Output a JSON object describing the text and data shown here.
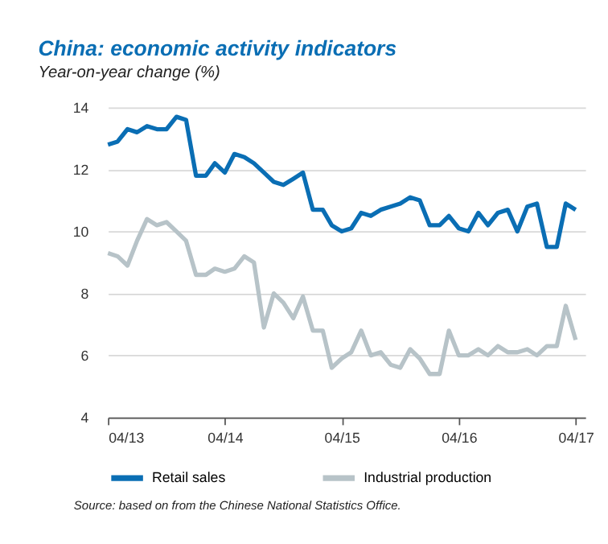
{
  "chart_data": {
    "type": "line",
    "title": "China: economic activity indicators",
    "subtitle": "Year-on-year change (%)",
    "x": [
      "2013-04",
      "2013-05",
      "2013-06",
      "2013-07",
      "2013-08",
      "2013-09",
      "2013-10",
      "2013-11",
      "2013-12",
      "2014-01",
      "2014-02",
      "2014-03",
      "2014-04",
      "2014-05",
      "2014-06",
      "2014-07",
      "2014-08",
      "2014-09",
      "2014-10",
      "2014-11",
      "2014-12",
      "2015-01",
      "2015-02",
      "2015-03",
      "2015-04",
      "2015-05",
      "2015-06",
      "2015-07",
      "2015-08",
      "2015-09",
      "2015-10",
      "2015-11",
      "2015-12",
      "2016-01",
      "2016-02",
      "2016-03",
      "2016-04",
      "2016-05",
      "2016-06",
      "2016-07",
      "2016-08",
      "2016-09",
      "2016-10",
      "2016-11",
      "2016-12",
      "2017-01",
      "2017-02",
      "2017-03",
      "2017-04"
    ],
    "series": [
      {
        "name": "Retail sales",
        "color": "#0a6eb4",
        "values": [
          12.8,
          12.9,
          13.3,
          13.2,
          13.4,
          13.3,
          13.3,
          13.7,
          13.6,
          11.8,
          11.8,
          12.2,
          11.9,
          12.5,
          12.4,
          12.2,
          11.9,
          11.6,
          11.5,
          11.7,
          11.9,
          10.7,
          10.7,
          10.2,
          10.0,
          10.1,
          10.6,
          10.5,
          10.7,
          10.8,
          10.9,
          11.1,
          11.0,
          10.2,
          10.2,
          10.5,
          10.1,
          10.0,
          10.6,
          10.2,
          10.6,
          10.7,
          10.0,
          10.8,
          10.9,
          9.5,
          9.5,
          10.9,
          10.7
        ]
      },
      {
        "name": "Industrial production",
        "color": "#b7c3c8",
        "values": [
          9.3,
          9.2,
          8.9,
          9.7,
          10.4,
          10.2,
          10.3,
          10.0,
          9.7,
          8.6,
          8.6,
          8.8,
          8.7,
          8.8,
          9.2,
          9.0,
          6.9,
          8.0,
          7.7,
          7.2,
          7.9,
          6.8,
          6.8,
          5.6,
          5.9,
          6.1,
          6.8,
          6.0,
          6.1,
          5.7,
          5.6,
          6.2,
          5.9,
          5.4,
          5.4,
          6.8,
          6.0,
          6.0,
          6.2,
          6.0,
          6.3,
          6.1,
          6.1,
          6.2,
          6.0,
          6.3,
          6.3,
          7.6,
          6.5
        ]
      }
    ],
    "xlim": [
      "2013-04",
      "2017-05"
    ],
    "xticks": [
      {
        "value": "2013-04",
        "label": "04/13"
      },
      {
        "value": "2014-04",
        "label": "04/14"
      },
      {
        "value": "2015-04",
        "label": "04/15"
      },
      {
        "value": "2016-04",
        "label": "04/16"
      },
      {
        "value": "2017-04",
        "label": "04/17"
      }
    ],
    "ylim": [
      4,
      14
    ],
    "yticks": [
      4,
      6,
      8,
      10,
      12,
      14
    ],
    "grid": "y",
    "legend": "bottom",
    "line_style": "solid",
    "marker": "none",
    "annotations": [
      "Source: based on from the Chinese National Statistics Office."
    ]
  }
}
